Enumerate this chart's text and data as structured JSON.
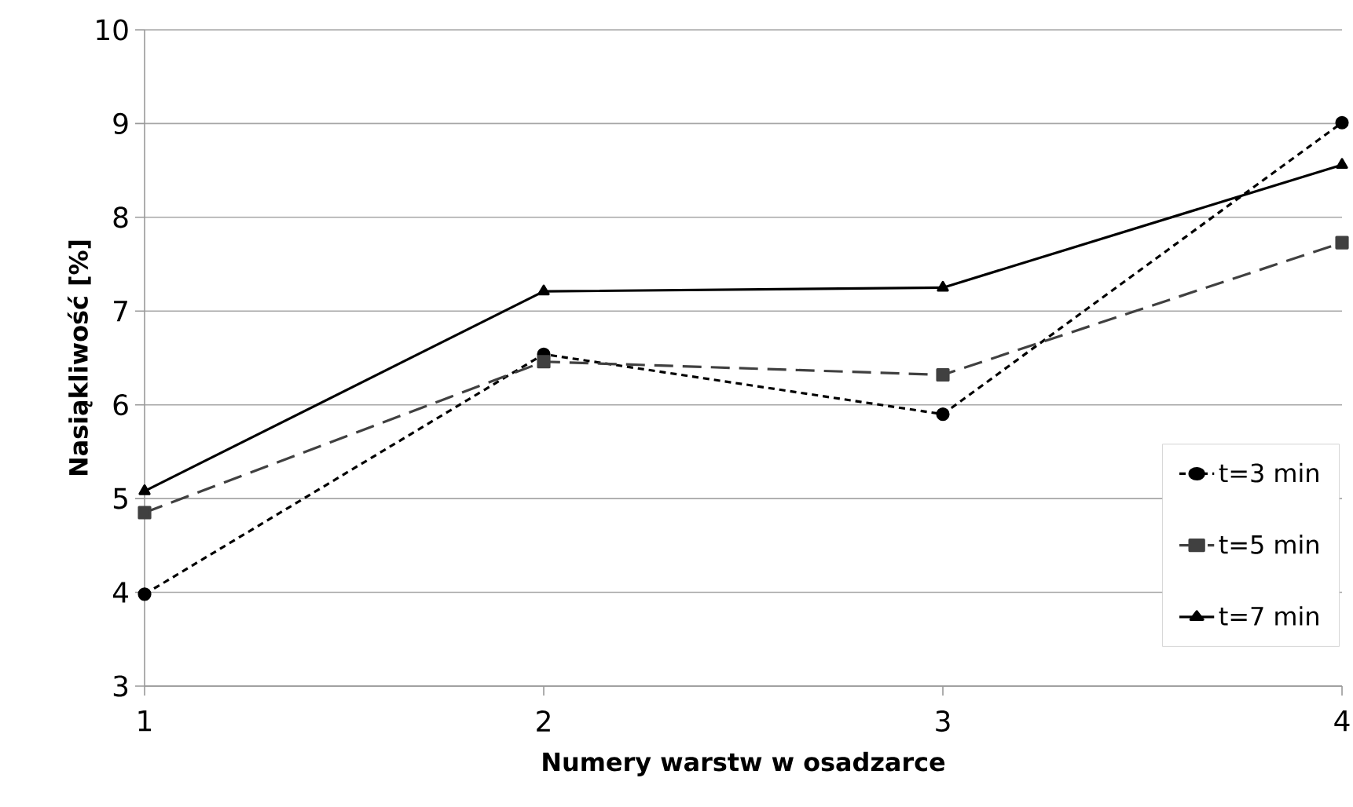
{
  "chart_data": {
    "type": "line",
    "xlabel": "Numery warstw w osadzarce",
    "ylabel": "Nasiąkliwość [%]",
    "x": [
      1,
      2,
      3,
      4
    ],
    "xlim": [
      1,
      4
    ],
    "xticks": [
      1,
      2,
      3,
      4
    ],
    "ylim": [
      3,
      10
    ],
    "yticks": [
      3,
      4,
      5,
      6,
      7,
      8,
      9,
      10
    ],
    "grid": "y",
    "legend": "right",
    "series": [
      {
        "name": "t=3 min",
        "color": "#000000",
        "marker": "circle",
        "line_style": "dotted",
        "values": [
          3.98,
          6.54,
          5.9,
          9.01
        ]
      },
      {
        "name": "t=5 min",
        "color": "#404040",
        "marker": "square",
        "line_style": "dashed",
        "values": [
          4.85,
          6.46,
          6.32,
          7.73
        ]
      },
      {
        "name": "t=7 min",
        "color": "#000000",
        "marker": "triangle",
        "line_style": "solid",
        "values": [
          5.08,
          7.21,
          7.25,
          8.56
        ]
      }
    ]
  }
}
